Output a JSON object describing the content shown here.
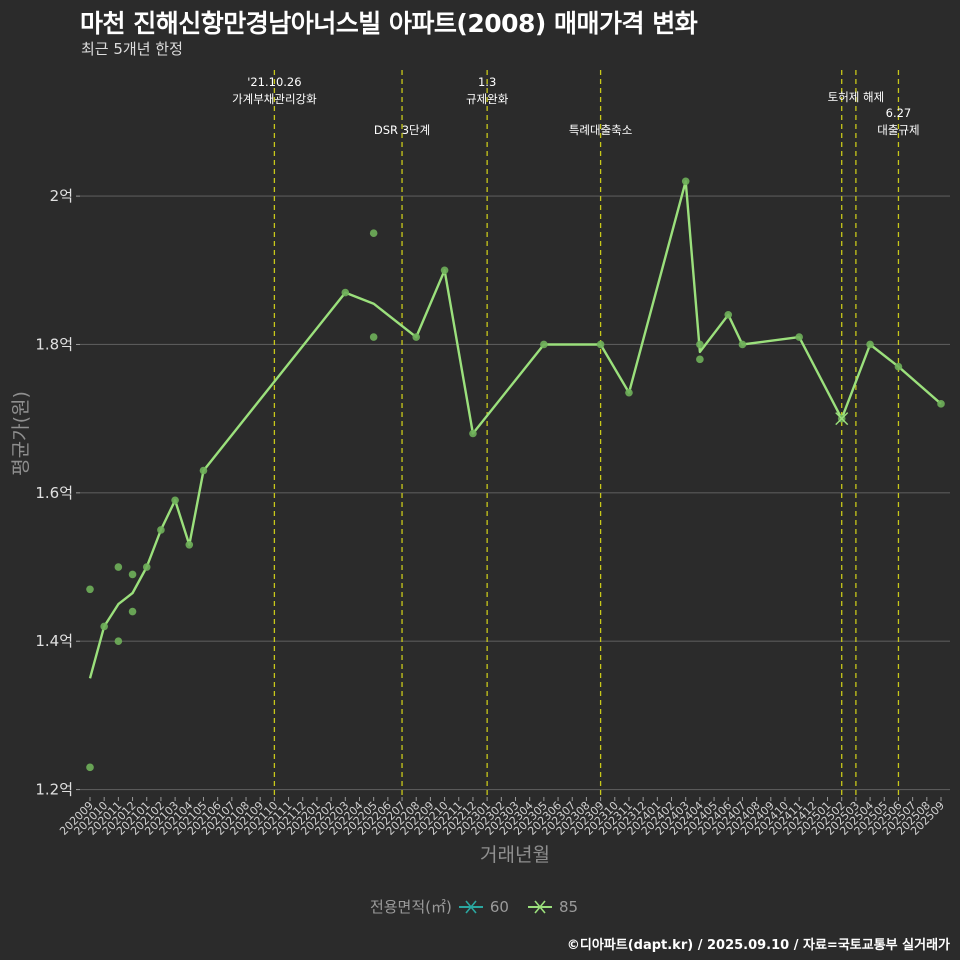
{
  "chart_data": {
    "type": "line",
    "title": "마천 진해신항만경남아너스빌 아파트(2008) 매매가격 변화",
    "subtitle": "최근 5개년 한정",
    "xlabel": "거래년월",
    "ylabel": "평균가(원)",
    "y_tick_values": [
      1.2,
      1.4,
      1.6,
      1.8,
      2.0
    ],
    "y_tick_labels": [
      "1.2억",
      "1.4억",
      "1.6억",
      "1.8억",
      "2억"
    ],
    "ylim": [
      1.19,
      2.17
    ],
    "grid": true,
    "legend_position": "bottom",
    "legend_title": "전용면적(㎡)",
    "categories": [
      "202009",
      "202010",
      "202011",
      "202012",
      "202101",
      "202102",
      "202103",
      "202104",
      "202105",
      "202106",
      "202107",
      "202108",
      "202109",
      "202110",
      "202111",
      "202112",
      "202201",
      "202202",
      "202203",
      "202204",
      "202205",
      "202206",
      "202207",
      "202208",
      "202209",
      "202210",
      "202211",
      "202212",
      "202301",
      "202302",
      "202303",
      "202304",
      "202305",
      "202306",
      "202307",
      "202308",
      "202309",
      "202310",
      "202311",
      "202312",
      "202401",
      "202402",
      "202403",
      "202404",
      "202405",
      "202406",
      "202407",
      "202408",
      "202409",
      "202410",
      "202411",
      "202412",
      "202501",
      "202502",
      "202503",
      "202504",
      "202505",
      "202506",
      "202507",
      "202508",
      "202509"
    ],
    "series": [
      {
        "name": "60",
        "color": "#2ba7a0",
        "points": []
      },
      {
        "name": "85",
        "color": "#9be07c",
        "line": [
          [
            "202009",
            1.35
          ],
          [
            "202010",
            1.42
          ],
          [
            "202011",
            1.45
          ],
          [
            "202012",
            1.465
          ],
          [
            "202101",
            1.5
          ],
          [
            "202102",
            1.55
          ],
          [
            "202103",
            1.59
          ],
          [
            "202104",
            1.53
          ],
          [
            "202105",
            1.63
          ],
          [
            "202203",
            1.87
          ],
          [
            "202205",
            1.855
          ],
          [
            "202208",
            1.81
          ],
          [
            "202210",
            1.9
          ],
          [
            "202212",
            1.68
          ],
          [
            "202305",
            1.8
          ],
          [
            "202309",
            1.8
          ],
          [
            "202311",
            1.735
          ],
          [
            "202403",
            2.02
          ],
          [
            "202404",
            1.79
          ],
          [
            "202406",
            1.84
          ],
          [
            "202407",
            1.8
          ],
          [
            "202411",
            1.81
          ],
          [
            "202502",
            1.7
          ],
          [
            "202504",
            1.8
          ],
          [
            "202506",
            1.77
          ],
          [
            "202509",
            1.72
          ]
        ],
        "points": [
          [
            "202009",
            1.47
          ],
          [
            "202009",
            1.23
          ],
          [
            "202010",
            1.42
          ],
          [
            "202011",
            1.5
          ],
          [
            "202011",
            1.4
          ],
          [
            "202012",
            1.49
          ],
          [
            "202012",
            1.44
          ],
          [
            "202101",
            1.5
          ],
          [
            "202102",
            1.55
          ],
          [
            "202103",
            1.59
          ],
          [
            "202104",
            1.53
          ],
          [
            "202105",
            1.63
          ],
          [
            "202203",
            1.87
          ],
          [
            "202205",
            1.95
          ],
          [
            "202205",
            1.81
          ],
          [
            "202208",
            1.81
          ],
          [
            "202210",
            1.9
          ],
          [
            "202212",
            1.68
          ],
          [
            "202305",
            1.8
          ],
          [
            "202309",
            1.8
          ],
          [
            "202311",
            1.735
          ],
          [
            "202403",
            2.02
          ],
          [
            "202404",
            1.8
          ],
          [
            "202404",
            1.78
          ],
          [
            "202406",
            1.84
          ],
          [
            "202407",
            1.8
          ],
          [
            "202411",
            1.81
          ],
          [
            "202502",
            1.7
          ],
          [
            "202504",
            1.8
          ],
          [
            "202506",
            1.77
          ],
          [
            "202509",
            1.72
          ]
        ]
      }
    ],
    "annotations": [
      {
        "x": "202110",
        "lines": [
          "'21.10.26",
          "가계부채관리강화"
        ],
        "row": 0
      },
      {
        "x": "202207",
        "lines": [
          "DSR 3단계"
        ],
        "row": 2
      },
      {
        "x": "202301",
        "lines": [
          "1.3",
          "규제완화"
        ],
        "row": 0
      },
      {
        "x": "202309",
        "lines": [
          "특례대출축소"
        ],
        "row": 2
      },
      {
        "x": "202503",
        "lines": [
          "토허제 해제"
        ],
        "row": 1,
        "extra_line_x": "202502"
      },
      {
        "x": "202506",
        "lines": [
          "6.27",
          "대출규제"
        ],
        "row": 3
      }
    ],
    "vlines": [
      "202110",
      "202207",
      "202301",
      "202309",
      "202502",
      "202503",
      "202506"
    ],
    "caption": "©디아파트(dapt.kr) / 2025.09.10 / 자료=국토교통부 실거래가"
  }
}
